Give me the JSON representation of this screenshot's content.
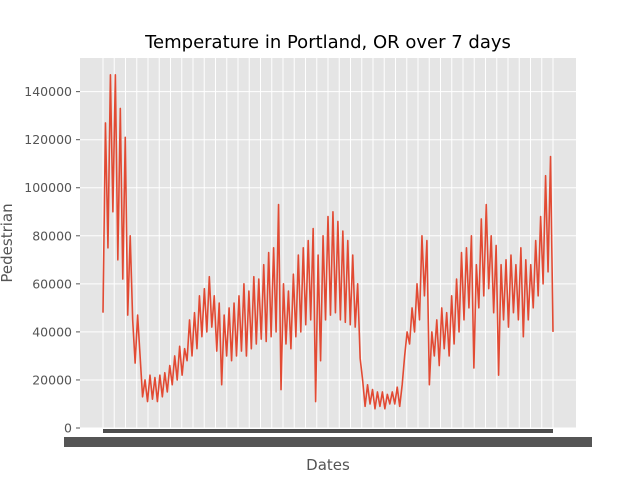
{
  "chart_data": {
    "type": "line",
    "title": "Temperature in Portland, OR over 7 days",
    "xlabel": "Dates",
    "ylabel": "Pedestrian",
    "ylim": [
      0,
      154000
    ],
    "yticks": [
      0,
      20000,
      40000,
      60000,
      80000,
      100000,
      120000,
      140000
    ],
    "grid": true,
    "legend": "none",
    "style": "ggplot",
    "colors": {
      "line": "#E24A33",
      "axes_bg": "#E5E5E5",
      "grid": "#FFFFFF",
      "tick_text": "#555555"
    },
    "series": [
      {
        "values": [
          48000,
          127000,
          75000,
          147000,
          90000,
          147000,
          70000,
          133000,
          62000,
          121000,
          47000,
          80000,
          45000,
          27000,
          47000,
          30000,
          13000,
          20000,
          11000,
          22000,
          12000,
          21000,
          11000,
          22000,
          13000,
          23000,
          15000,
          26000,
          18000,
          30000,
          20000,
          34000,
          22000,
          33000,
          28000,
          45000,
          30000,
          48000,
          33000,
          55000,
          38000,
          58000,
          40000,
          63000,
          42000,
          55000,
          32000,
          52000,
          18000,
          47000,
          30000,
          50000,
          28000,
          52000,
          30000,
          55000,
          32000,
          60000,
          30000,
          57000,
          33000,
          63000,
          35000,
          62000,
          37000,
          68000,
          36000,
          73000,
          38000,
          75000,
          40000,
          93000,
          16000,
          60000,
          35000,
          57000,
          33000,
          64000,
          38000,
          72000,
          40000,
          75000,
          43000,
          78000,
          45000,
          83000,
          11000,
          72000,
          28000,
          80000,
          45000,
          88000,
          47000,
          90000,
          48000,
          86000,
          45000,
          82000,
          44000,
          78000,
          43000,
          72000,
          42000,
          60000,
          29000,
          20000,
          9000,
          18000,
          10000,
          16000,
          8000,
          15000,
          9000,
          15000,
          8000,
          14000,
          10000,
          15000,
          10000,
          17000,
          9000,
          18000,
          30000,
          40000,
          35000,
          50000,
          40000,
          60000,
          45000,
          80000,
          55000,
          78000,
          18000,
          40000,
          30000,
          45000,
          26000,
          50000,
          33000,
          48000,
          30000,
          55000,
          35000,
          62000,
          40000,
          73000,
          45000,
          75000,
          50000,
          80000,
          25000,
          68000,
          50000,
          87000,
          55000,
          93000,
          58000,
          80000,
          48000,
          76000,
          22000,
          68000,
          45000,
          70000,
          42000,
          72000,
          48000,
          68000,
          45000,
          75000,
          38000,
          70000,
          45000,
          68000,
          50000,
          78000,
          55000,
          88000,
          60000,
          105000,
          65000,
          113000,
          40000
        ]
      }
    ]
  }
}
